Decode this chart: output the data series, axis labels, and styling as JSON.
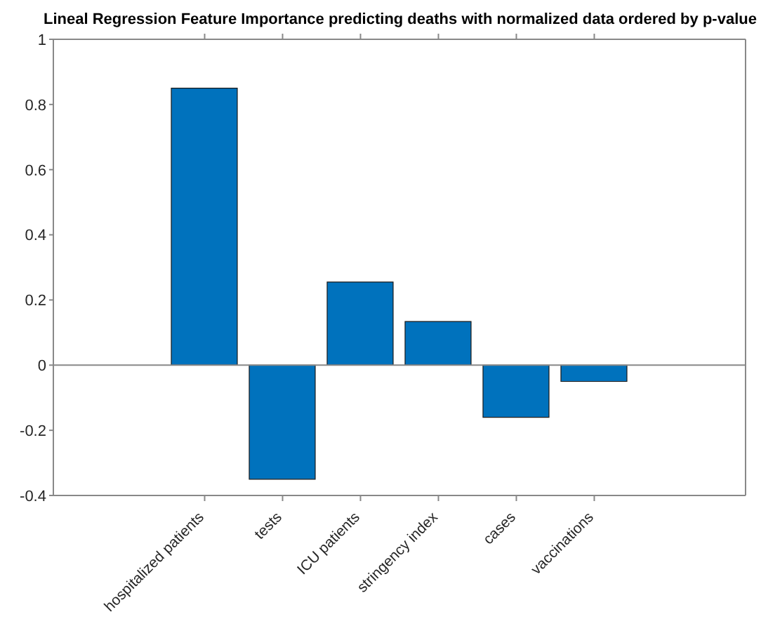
{
  "chart_data": {
    "type": "bar",
    "title": "Lineal Regression Feature Importance predicting deaths with normalized data ordered by p-value",
    "categories": [
      "hospitalized patients",
      "tests",
      "ICU patients",
      "stringency index",
      "cases",
      "vaccinations"
    ],
    "values": [
      0.85,
      -0.35,
      0.255,
      0.134,
      -0.16,
      -0.05
    ],
    "color": "#0072bd",
    "ylim": [
      -0.4,
      1
    ],
    "yticks": [
      -0.4,
      -0.2,
      0,
      0.2,
      0.4,
      0.6,
      0.8,
      1
    ],
    "grid": false,
    "ref_lines": [
      {
        "axis": "y",
        "value": 0,
        "color": "#888888"
      }
    ]
  }
}
